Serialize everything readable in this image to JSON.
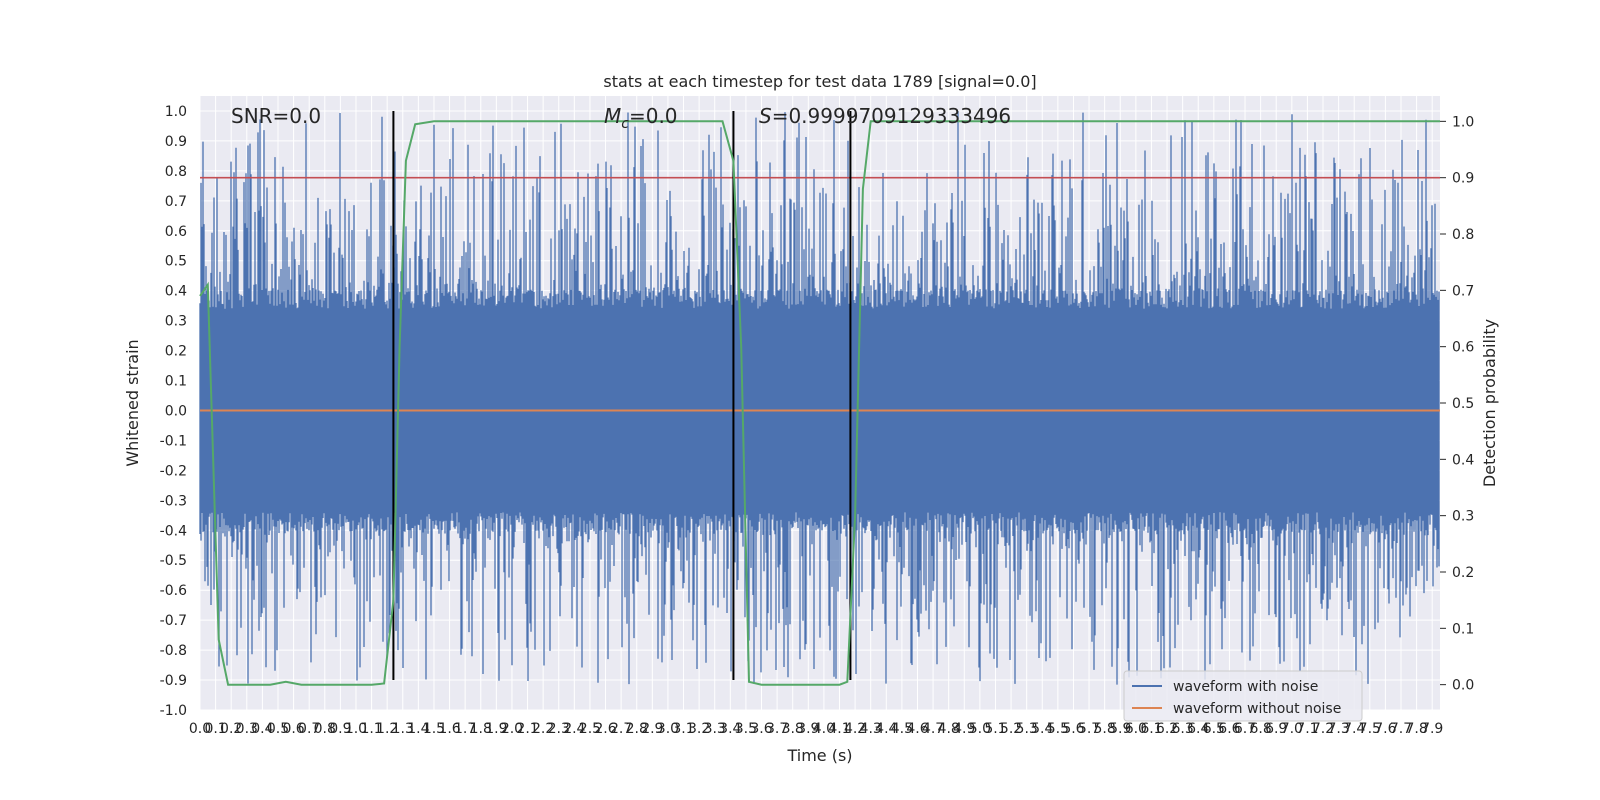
{
  "chart_data": {
    "type": "line",
    "title": "stats at each timestep for test data 1789 [signal=0.0]",
    "xlabel": "Time (s)",
    "ylabel": "Whitened strain",
    "y2label": "Detection probability",
    "xlim": [
      0.0,
      7.95
    ],
    "ylim": [
      -1.0,
      1.05
    ],
    "y2lim": [
      -0.045,
      1.045
    ],
    "x_ticks": [
      0.0,
      0.1,
      0.2,
      0.3,
      0.4,
      0.5,
      0.6,
      0.7,
      0.8,
      0.9,
      1.0,
      1.1,
      1.2,
      1.3,
      1.4,
      1.5,
      1.6,
      1.7,
      1.8,
      1.9,
      2.0,
      2.1,
      2.2,
      2.3,
      2.4,
      2.5,
      2.6,
      2.7,
      2.8,
      2.9,
      3.0,
      3.1,
      3.2,
      3.3,
      3.4,
      3.5,
      3.6,
      3.7,
      3.8,
      3.9,
      4.0,
      4.1,
      4.2,
      4.3,
      4.4,
      4.5,
      4.6,
      4.7,
      4.8,
      4.9,
      5.0,
      5.1,
      5.2,
      5.3,
      5.4,
      5.5,
      5.6,
      5.7,
      5.8,
      5.9,
      6.0,
      6.1,
      6.2,
      6.3,
      6.4,
      6.5,
      6.6,
      6.7,
      6.8,
      6.9,
      7.0,
      7.1,
      7.2,
      7.3,
      7.4,
      7.5,
      7.6,
      7.7,
      7.8,
      7.9
    ],
    "y_ticks": [
      -1.0,
      -0.9,
      -0.8,
      -0.7,
      -0.6,
      -0.5,
      -0.4,
      -0.3,
      -0.2,
      -0.1,
      0.0,
      0.1,
      0.2,
      0.3,
      0.4,
      0.5,
      0.6,
      0.7,
      0.8,
      0.9,
      1.0
    ],
    "y2_ticks": [
      0.0,
      0.1,
      0.2,
      0.3,
      0.4,
      0.5,
      0.6,
      0.7,
      0.8,
      0.9,
      1.0
    ],
    "annotations": {
      "snr": "SNR=0.0",
      "mc_symbol": "M",
      "mc_sub": "c",
      "mc_value": "=0.0",
      "s_symbol": "S",
      "s_value": "=0.9999709129333496"
    },
    "threshold": {
      "y2": 0.9,
      "color": "#c44e52"
    },
    "segment_markers_x": [
      1.24,
      3.42,
      4.17
    ],
    "series": [
      {
        "name": "waveform with noise",
        "color": "#4c72b0",
        "noise_amplitude": 0.4,
        "peak_range": [
          -0.92,
          1.0
        ]
      },
      {
        "name": "waveform without noise",
        "color": "#dd8452",
        "value": 0.0
      }
    ],
    "probability_series": {
      "color": "#55a868",
      "x": [
        0.0,
        0.05,
        0.12,
        0.18,
        0.3,
        0.45,
        0.55,
        0.65,
        0.9,
        1.0,
        1.1,
        1.18,
        1.24,
        1.28,
        1.32,
        1.38,
        1.5,
        2.0,
        2.5,
        3.0,
        3.2,
        3.35,
        3.42,
        3.47,
        3.52,
        3.6,
        4.0,
        4.1,
        4.15,
        4.2,
        4.25,
        4.3,
        5.0,
        6.0,
        7.0,
        7.95
      ],
      "y": [
        0.69,
        0.71,
        0.08,
        0.0,
        0.0,
        0.0,
        0.005,
        0.0,
        0.0,
        0.0,
        0.0,
        0.002,
        0.15,
        0.6,
        0.93,
        0.995,
        1.0,
        1.0,
        1.0,
        1.0,
        1.0,
        1.0,
        0.93,
        0.6,
        0.005,
        0.0,
        0.0,
        0.0,
        0.005,
        0.3,
        0.88,
        1.0,
        1.0,
        1.0,
        1.0,
        1.0
      ]
    },
    "grid": true,
    "legend_position": "bottom-right"
  }
}
